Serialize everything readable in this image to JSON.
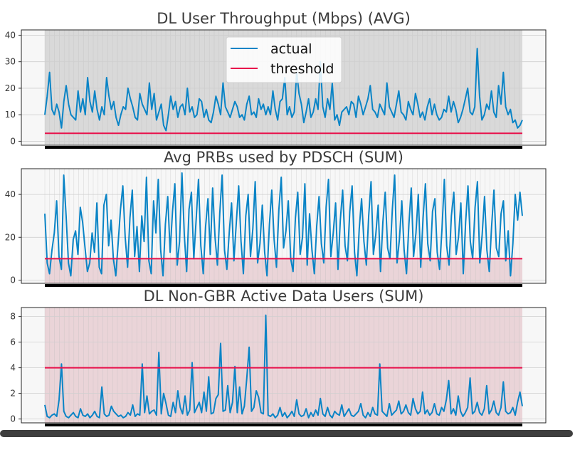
{
  "chart_data": [
    {
      "type": "line",
      "title": "DL User Throughput (Mbps) (AVG)",
      "ylim": [
        -1.5,
        42
      ],
      "yticks": [
        0,
        10,
        20,
        30,
        40
      ],
      "grid": true,
      "legend": {
        "placement": "top-center",
        "entries": [
          "actual",
          "threshold"
        ]
      },
      "shaded_zone": {
        "color": "#7f7f7f",
        "from": -1.5,
        "to": 42
      },
      "series": [
        {
          "name": "actual",
          "color": "#0a84c6",
          "values": [
            10,
            17,
            26,
            12,
            10,
            14,
            11,
            5,
            15,
            21,
            14,
            10,
            9,
            8,
            19,
            11,
            16,
            10,
            24,
            15,
            11,
            19,
            12,
            8,
            13,
            10,
            24,
            17,
            12,
            15,
            9,
            6,
            10,
            13,
            12,
            20,
            16,
            13,
            9,
            8,
            18,
            14,
            12,
            10,
            22,
            12,
            18,
            8,
            11,
            14,
            6,
            4,
            10,
            17,
            12,
            15,
            9,
            13,
            14,
            10,
            20,
            11,
            13,
            9,
            10,
            16,
            15,
            9,
            12,
            8,
            7,
            11,
            17,
            14,
            10,
            22,
            13,
            11,
            9,
            12,
            15,
            13,
            9,
            10,
            8,
            14,
            17,
            10,
            11,
            9,
            16,
            12,
            14,
            10,
            13,
            10,
            19,
            12,
            8,
            15,
            16,
            24,
            10,
            13,
            9,
            11,
            26,
            18,
            14,
            7,
            11,
            16,
            9,
            11,
            16,
            12,
            30,
            13,
            9,
            16,
            12,
            22,
            8,
            10,
            6,
            11,
            12,
            13,
            10,
            15,
            14,
            9,
            17,
            14,
            10,
            13,
            16,
            21,
            12,
            11,
            9,
            14,
            12,
            10,
            22,
            13,
            11,
            9,
            14,
            19,
            11,
            10,
            8,
            15,
            12,
            10,
            18,
            14,
            9,
            11,
            8,
            13,
            16,
            10,
            14,
            10,
            8,
            9,
            12,
            11,
            17,
            11,
            15,
            12,
            7,
            9,
            12,
            16,
            20,
            11,
            10,
            13,
            35,
            17,
            8,
            10,
            14,
            12,
            19,
            11,
            9,
            21,
            14,
            26,
            13,
            10,
            12,
            7,
            8,
            5,
            6,
            8
          ]
        },
        {
          "name": "threshold",
          "color": "#e8114b",
          "constant": 3
        }
      ]
    },
    {
      "type": "line",
      "title": "Avg PRBs used by PDSCH (SUM)",
      "ylim": [
        -1.5,
        52
      ],
      "yticks": [
        0,
        20,
        40
      ],
      "grid": true,
      "shaded_zone": {
        "color": "#c46a7a",
        "from": -1.5,
        "to": 10
      },
      "series": [
        {
          "name": "actual",
          "color": "#0a84c6",
          "values": [
            31,
            8,
            3,
            14,
            22,
            37,
            11,
            5,
            49,
            30,
            8,
            2,
            19,
            23,
            12,
            34,
            27,
            15,
            4,
            8,
            22,
            13,
            36,
            6,
            3,
            35,
            40,
            16,
            28,
            10,
            2,
            17,
            33,
            44,
            20,
            6,
            29,
            42,
            11,
            25,
            4,
            30,
            18,
            48,
            9,
            3,
            37,
            22,
            47,
            14,
            2,
            26,
            39,
            13,
            32,
            45,
            7,
            18,
            50,
            21,
            4,
            33,
            41,
            10,
            28,
            47,
            16,
            3,
            25,
            38,
            12,
            43,
            20,
            7,
            31,
            49,
            14,
            5,
            22,
            36,
            9,
            27,
            44,
            18,
            3,
            30,
            40,
            11,
            24,
            46,
            8,
            17,
            35,
            13,
            2,
            26,
            42,
            19,
            6,
            33,
            48,
            15,
            23,
            37,
            10,
            4,
            29,
            41,
            12,
            20,
            45,
            7,
            31,
            14,
            3,
            25,
            39,
            17,
            8,
            34,
            47,
            11,
            22,
            36,
            5,
            28,
            42,
            16,
            9,
            32,
            44,
            13,
            2,
            24,
            38,
            18,
            7,
            30,
            46,
            12,
            21,
            35,
            4,
            27,
            41,
            15,
            10,
            33,
            49,
            8,
            19,
            37,
            14,
            3,
            26,
            43,
            11,
            22,
            40,
            6,
            29,
            45,
            17,
            9,
            32,
            38,
            13,
            5,
            24,
            47,
            16,
            7,
            30,
            41,
            12,
            20,
            36,
            3,
            27,
            44,
            18,
            10,
            34,
            46,
            8,
            21,
            39,
            14,
            4,
            25,
            42,
            15,
            11,
            31,
            37,
            9,
            23,
            2,
            17,
            40,
            28,
            41,
            30
          ]
        },
        {
          "name": "threshold",
          "color": "#e8114b",
          "constant": 10
        }
      ]
    },
    {
      "type": "line",
      "title": "DL Non-GBR Active Data Users (SUM)",
      "ylim": [
        -0.3,
        8.7
      ],
      "yticks": [
        0,
        2,
        4,
        6,
        8
      ],
      "grid": true,
      "shaded_zone": {
        "color": "#c46a7a",
        "from": -0.3,
        "to": 8.7
      },
      "series": [
        {
          "name": "actual",
          "color": "#0a84c6",
          "values": [
            1.1,
            0.2,
            0.1,
            0.3,
            0.4,
            0.2,
            1.5,
            4.3,
            0.6,
            0.2,
            0.1,
            0.3,
            0.5,
            0.2,
            0.1,
            0.8,
            0.3,
            0.2,
            0.4,
            0.1,
            0.3,
            0.6,
            0.2,
            0.1,
            2.5,
            0.4,
            0.2,
            0.3,
            1.0,
            0.6,
            0.4,
            0.2,
            0.3,
            0.1,
            0.2,
            0.5,
            0.3,
            1.1,
            0.2,
            0.4,
            0.3,
            4.3,
            0.5,
            1.8,
            0.4,
            0.6,
            0.7,
            0.3,
            5.2,
            0.4,
            2.0,
            1.2,
            0.3,
            0.2,
            1.3,
            0.5,
            2.2,
            0.9,
            0.4,
            1.8,
            0.3,
            0.7,
            4.4,
            0.5,
            0.9,
            1.3,
            0.5,
            2.1,
            0.6,
            3.3,
            0.4,
            0.5,
            1.6,
            1.9,
            5.9,
            0.6,
            0.7,
            2.6,
            0.5,
            1.3,
            4.1,
            0.5,
            2.5,
            0.4,
            1.0,
            3.2,
            5.6,
            0.6,
            0.9,
            2.2,
            1.7,
            0.5,
            0.4,
            8.1,
            0.3,
            0.2,
            0.4,
            0.1,
            0.3,
            0.9,
            0.2,
            0.5,
            0.1,
            0.3,
            0.6,
            0.2,
            1.5,
            0.4,
            0.2,
            0.3,
            0.8,
            0.1,
            0.5,
            0.2,
            0.7,
            0.3,
            1.6,
            0.4,
            0.2,
            0.9,
            0.3,
            0.1,
            0.6,
            0.4,
            0.3,
            1.1,
            0.2,
            0.5,
            0.8,
            0.3,
            0.2,
            0.4,
            0.6,
            1.2,
            0.3,
            0.1,
            0.5,
            0.2,
            0.9,
            0.4,
            0.3,
            4.3,
            0.6,
            0.4,
            0.2,
            1.2,
            0.3,
            0.5,
            0.7,
            1.4,
            0.4,
            0.6,
            1.1,
            0.5,
            0.3,
            1.6,
            0.8,
            0.4,
            0.6,
            2.1,
            0.4,
            0.7,
            0.3,
            0.5,
            1.2,
            0.4,
            0.3,
            0.9,
            0.6,
            1.5,
            3.0,
            0.4,
            0.8,
            0.3,
            1.8,
            0.6,
            0.2,
            0.5,
            0.9,
            3.2,
            0.4,
            0.6,
            1.3,
            0.5,
            0.3,
            0.8,
            2.6,
            0.4,
            0.7,
            1.4,
            0.5,
            0.3,
            0.9,
            2.9,
            0.6,
            0.4,
            0.5,
            0.9,
            0.3,
            1.3,
            2.1,
            1.0
          ]
        },
        {
          "name": "threshold",
          "color": "#e8114b",
          "constant": 4
        }
      ]
    }
  ]
}
